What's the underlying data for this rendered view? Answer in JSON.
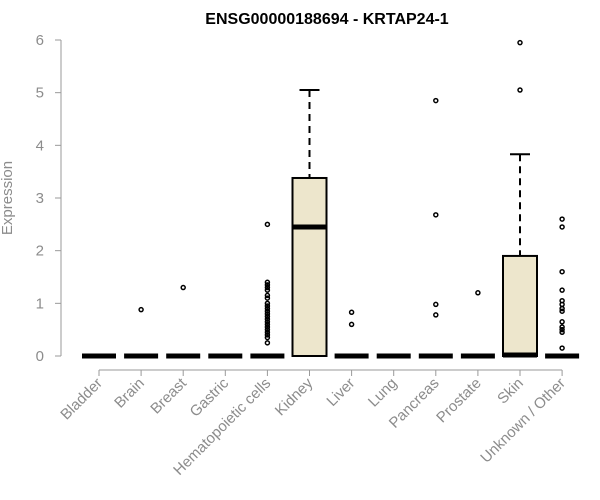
{
  "chart_data": {
    "type": "boxplot",
    "title": "ENSG00000188694 - KRTAP24-1",
    "xlabel": "",
    "ylabel": "Expression",
    "ylim": [
      0,
      6
    ],
    "yticks": [
      0,
      1,
      2,
      3,
      4,
      5,
      6
    ],
    "categories": [
      "Bladder",
      "Brain",
      "Breast",
      "Gastric",
      "Hematopoietic cells",
      "Kidney",
      "Liver",
      "Lung",
      "Pancreas",
      "Prostate",
      "Skin",
      "Unknown / Other"
    ],
    "boxes": [
      {
        "category": "Bladder",
        "q1": 0,
        "median": 0,
        "q3": 0,
        "whisker_low": 0,
        "whisker_high": 0,
        "outliers": []
      },
      {
        "category": "Brain",
        "q1": 0,
        "median": 0,
        "q3": 0,
        "whisker_low": 0,
        "whisker_high": 0,
        "outliers": [
          0.88
        ]
      },
      {
        "category": "Breast",
        "q1": 0,
        "median": 0,
        "q3": 0,
        "whisker_low": 0,
        "whisker_high": 0,
        "outliers": [
          1.3
        ]
      },
      {
        "category": "Gastric",
        "q1": 0,
        "median": 0,
        "q3": 0,
        "whisker_low": 0,
        "whisker_high": 0,
        "outliers": []
      },
      {
        "category": "Hematopoietic cells",
        "q1": 0,
        "median": 0,
        "q3": 0,
        "whisker_low": 0,
        "whisker_high": 0,
        "outliers": [
          2.5,
          1.4,
          1.35,
          1.3,
          1.25,
          1.15,
          1.1,
          1.0,
          0.95,
          0.9,
          0.85,
          0.8,
          0.75,
          0.7,
          0.65,
          0.6,
          0.55,
          0.5,
          0.45,
          0.4,
          0.35,
          0.25
        ]
      },
      {
        "category": "Kidney",
        "q1": 0,
        "median": 2.45,
        "q3": 3.38,
        "whisker_low": 0,
        "whisker_high": 5.05,
        "outliers": []
      },
      {
        "category": "Liver",
        "q1": 0,
        "median": 0,
        "q3": 0,
        "whisker_low": 0,
        "whisker_high": 0,
        "outliers": [
          0.83,
          0.6
        ]
      },
      {
        "category": "Lung",
        "q1": 0,
        "median": 0,
        "q3": 0,
        "whisker_low": 0,
        "whisker_high": 0,
        "outliers": []
      },
      {
        "category": "Pancreas",
        "q1": 0,
        "median": 0,
        "q3": 0,
        "whisker_low": 0,
        "whisker_high": 0,
        "outliers": [
          4.85,
          2.68,
          0.98,
          0.78
        ]
      },
      {
        "category": "Prostate",
        "q1": 0,
        "median": 0,
        "q3": 0,
        "whisker_low": 0,
        "whisker_high": 0,
        "outliers": [
          1.2
        ]
      },
      {
        "category": "Skin",
        "q1": 0,
        "median": 0.02,
        "q3": 1.9,
        "whisker_low": 0,
        "whisker_high": 3.83,
        "outliers": [
          5.95,
          5.05
        ]
      },
      {
        "category": "Unknown / Other",
        "q1": 0,
        "median": 0,
        "q3": 0,
        "whisker_low": 0,
        "whisker_high": 0,
        "outliers": [
          2.6,
          2.45,
          1.6,
          1.25,
          1.05,
          0.98,
          0.9,
          0.85,
          0.65,
          0.55,
          0.5,
          0.45,
          0.15
        ]
      }
    ],
    "colors": {
      "box_fill": "#ede6cc",
      "box_stroke": "#000000",
      "axis": "#9a9a9a",
      "text": "#8c8c8c"
    }
  }
}
